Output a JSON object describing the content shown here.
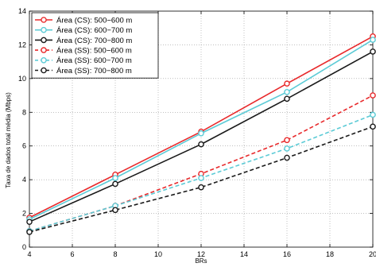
{
  "chart_data": {
    "type": "line",
    "title": "",
    "xlabel": "BRs",
    "ylabel": "Taxa de dados total média (Mbps)",
    "xlim": [
      4,
      20
    ],
    "ylim": [
      0,
      14
    ],
    "xticks": [
      4,
      6,
      8,
      10,
      12,
      14,
      16,
      18,
      20
    ],
    "yticks": [
      0,
      2,
      4,
      6,
      8,
      10,
      12,
      14
    ],
    "grid": true,
    "legend_position": "top-left",
    "x": [
      4,
      8,
      12,
      16,
      20
    ],
    "series": [
      {
        "name": "Área (CS): 500−600 m",
        "color": "#e8292b",
        "dashed": false,
        "values": [
          1.75,
          4.3,
          6.85,
          9.7,
          12.5
        ]
      },
      {
        "name": "Área (CS): 600−700 m",
        "color": "#5ccbd6",
        "dashed": false,
        "values": [
          1.65,
          4.1,
          6.75,
          9.2,
          12.3
        ]
      },
      {
        "name": "Área (CS): 700−800 m",
        "color": "#1a1a1a",
        "dashed": false,
        "values": [
          1.5,
          3.75,
          6.1,
          8.8,
          11.6
        ]
      },
      {
        "name": "Área (SS): 500−600 m",
        "color": "#e8292b",
        "dashed": true,
        "values": [
          0.95,
          2.45,
          4.35,
          6.35,
          9.0
        ]
      },
      {
        "name": "Área (SS): 600−700 m",
        "color": "#5ccbd6",
        "dashed": true,
        "values": [
          0.95,
          2.45,
          4.1,
          5.85,
          7.85
        ]
      },
      {
        "name": "Área (SS): 700−800 m",
        "color": "#1a1a1a",
        "dashed": true,
        "values": [
          0.9,
          2.2,
          3.55,
          5.3,
          7.15
        ]
      }
    ]
  }
}
